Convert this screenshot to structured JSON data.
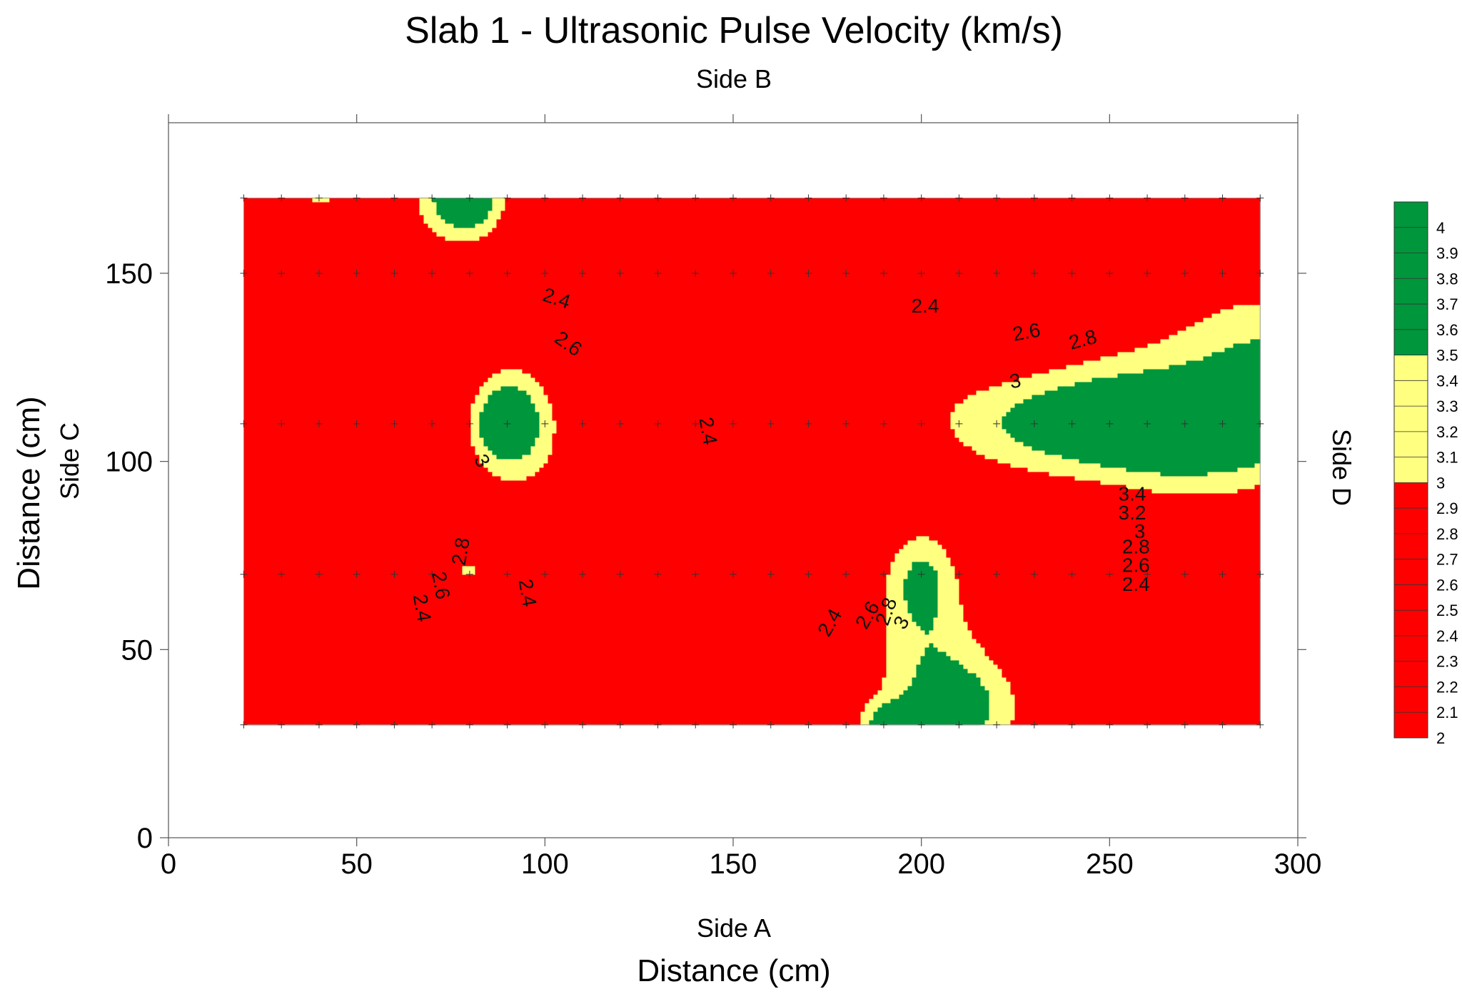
{
  "chart_data": {
    "type": "heatmap",
    "subtype": "filled-contour",
    "title": "Slab 1 - Ultrasonic Pulse Velocity (km/s)",
    "xlabel": "Distance (cm)",
    "ylabel": "Distance (cm)",
    "side_top": "Side B",
    "side_bottom": "Side A",
    "side_left": "Side C",
    "side_right": "Side D",
    "xlim": [
      0,
      300
    ],
    "ylim": [
      0,
      190
    ],
    "x_ticks": [
      0,
      50,
      100,
      150,
      200,
      250,
      300
    ],
    "y_ticks": [
      0,
      50,
      100,
      150
    ],
    "data_extent": {
      "x": [
        20,
        290
      ],
      "y": [
        30,
        170
      ]
    },
    "grid_x": [
      20,
      30,
      40,
      50,
      60,
      70,
      80,
      90,
      100,
      110,
      120,
      130,
      140,
      150,
      160,
      170,
      180,
      190,
      200,
      210,
      220,
      230,
      240,
      250,
      260,
      270,
      280,
      290
    ],
    "grid_y": [
      30,
      70,
      110,
      150,
      170
    ],
    "color_bands": [
      {
        "range": [
          2.0,
          3.0
        ],
        "color": "#ff0000"
      },
      {
        "range": [
          3.0,
          3.5
        ],
        "color": "#ffff80"
      },
      {
        "range": [
          3.5,
          4.1
        ],
        "color": "#00963c"
      }
    ],
    "colorbar_labels": [
      "4",
      "3.9",
      "3.8",
      "3.7",
      "3.6",
      "3.5",
      "3.4",
      "3.3",
      "3.2",
      "3.1",
      "3",
      "2.9",
      "2.8",
      "2.7",
      "2.6",
      "2.5",
      "2.4",
      "2.3",
      "2.2",
      "2.1",
      "2"
    ],
    "colorbar_range": [
      2.0,
      4.1
    ],
    "peaks": [
      {
        "x": 90,
        "y": 110,
        "v": 3.95,
        "sx": 5,
        "sy": 6
      },
      {
        "x": 92,
        "y": 110,
        "v": 3.1,
        "sx": 12,
        "sy": 18
      },
      {
        "x": 79,
        "y": 170,
        "v": 3.7,
        "sx": 6,
        "sy": 6
      },
      {
        "x": 78,
        "y": 170,
        "v": 3.05,
        "sx": 14,
        "sy": 14
      },
      {
        "x": 40,
        "y": 172,
        "v": 3.05,
        "sx": 8,
        "sy": 5
      },
      {
        "x": 80,
        "y": 71,
        "v": 3.05,
        "sx": 2,
        "sy": 2
      },
      {
        "x": 270,
        "y": 110,
        "v": 4.05,
        "sx": 22,
        "sy": 6
      },
      {
        "x": 272,
        "y": 105,
        "v": 3.3,
        "sx": 30,
        "sy": 14
      },
      {
        "x": 232,
        "y": 112,
        "v": 3.2,
        "sx": 28,
        "sy": 11
      },
      {
        "x": 292,
        "y": 128,
        "v": 3.3,
        "sx": 20,
        "sy": 14
      },
      {
        "x": 200,
        "y": 70,
        "v": 3.3,
        "sx": 7,
        "sy": 10
      },
      {
        "x": 203,
        "y": 45,
        "v": 3.2,
        "sx": 13,
        "sy": 18
      },
      {
        "x": 192,
        "y": 29,
        "v": 3.7,
        "sx": 6,
        "sy": 5
      },
      {
        "x": 215,
        "y": 34,
        "v": 3.15,
        "sx": 12,
        "sy": 10
      }
    ],
    "contour_labels": [
      {
        "text": "2.4",
        "x": 103,
        "y": 143,
        "rot": 18
      },
      {
        "text": "2.6",
        "x": 106,
        "y": 131,
        "rot": 35
      },
      {
        "text": "3",
        "x": 83,
        "y": 100,
        "rot": 60
      },
      {
        "text": "2.4",
        "x": 143,
        "y": 108,
        "rot": 80
      },
      {
        "text": "2.4",
        "x": 201,
        "y": 141,
        "rot": 0
      },
      {
        "text": "2.6",
        "x": 228,
        "y": 134,
        "rot": -10
      },
      {
        "text": "2.8",
        "x": 243,
        "y": 132,
        "rot": -15
      },
      {
        "text": "3",
        "x": 225,
        "y": 121,
        "rot": -10
      },
      {
        "text": "3.4",
        "x": 256,
        "y": 91,
        "rot": 0
      },
      {
        "text": "3.2",
        "x": 256,
        "y": 86,
        "rot": 0
      },
      {
        "text": "3",
        "x": 258,
        "y": 81,
        "rot": 0
      },
      {
        "text": "2.8",
        "x": 257,
        "y": 77,
        "rot": 0
      },
      {
        "text": "2.6",
        "x": 257,
        "y": 72,
        "rot": 0
      },
      {
        "text": "2.4",
        "x": 257,
        "y": 67,
        "rot": 0
      },
      {
        "text": "2.8",
        "x": 78,
        "y": 76,
        "rot": -80
      },
      {
        "text": "2.6",
        "x": 72,
        "y": 67,
        "rot": 80
      },
      {
        "text": "2.4",
        "x": 67,
        "y": 61,
        "rot": 80
      },
      {
        "text": "2.4",
        "x": 95,
        "y": 65,
        "rot": 80
      },
      {
        "text": "2.4",
        "x": 176,
        "y": 57,
        "rot": -60
      },
      {
        "text": "2.6",
        "x": 186,
        "y": 59,
        "rot": -60
      },
      {
        "text": "2.8",
        "x": 191,
        "y": 60,
        "rot": -70
      },
      {
        "text": "3",
        "x": 195,
        "y": 57,
        "rot": -60
      }
    ]
  }
}
